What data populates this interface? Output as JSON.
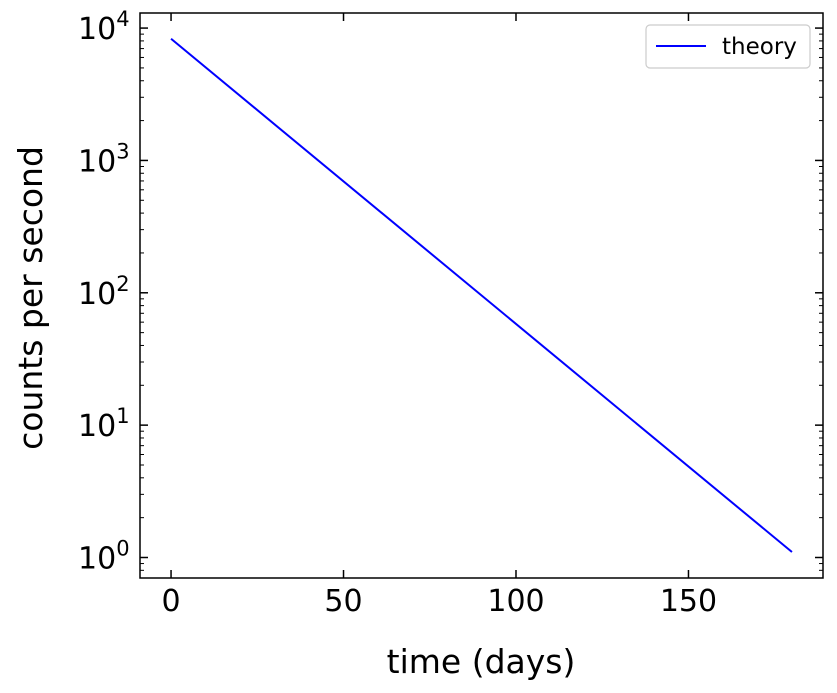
{
  "chart_data": {
    "type": "line",
    "title": "",
    "xlabel": "time (days)",
    "ylabel": "counts per second",
    "xlim": [
      -9,
      189
    ],
    "ylim": [
      0.7,
      13000
    ],
    "yscale": "log",
    "grid": false,
    "legend_position": "top-right",
    "x_ticks": [
      0,
      50,
      100,
      150
    ],
    "x_tick_labels": [
      "0",
      "50",
      "100",
      "150"
    ],
    "y_ticks": [
      1,
      10,
      100,
      1000,
      10000
    ],
    "y_tick_labels": [
      {
        "base": "10",
        "exp": "0"
      },
      {
        "base": "10",
        "exp": "1"
      },
      {
        "base": "10",
        "exp": "2"
      },
      {
        "base": "10",
        "exp": "3"
      },
      {
        "base": "10",
        "exp": "4"
      }
    ],
    "series": [
      {
        "name": "theory",
        "color": "#0000ff",
        "x": [
          0,
          180
        ],
        "y": [
          8300,
          1.1
        ]
      }
    ]
  }
}
